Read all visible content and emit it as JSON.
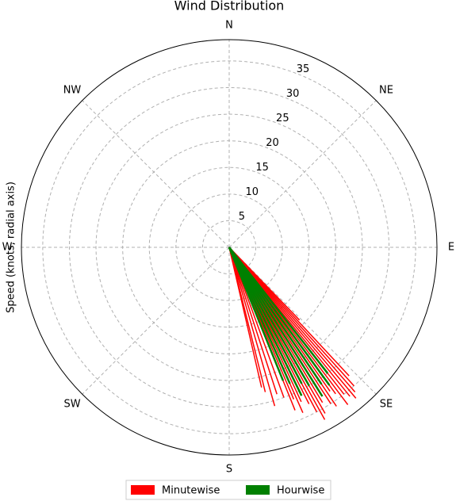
{
  "chart_data": {
    "type": "polar-line",
    "title": "Wind Distribution",
    "y_label": "Speed (knots, radial axis)",
    "direction": "clockwise",
    "zero_location": "N",
    "xticks": [
      {
        "value": 0,
        "label": "N"
      },
      {
        "value": 45,
        "label": "NE"
      },
      {
        "value": 90,
        "label": "E"
      },
      {
        "value": 135,
        "label": "SE"
      },
      {
        "value": 180,
        "label": "S"
      },
      {
        "value": 225,
        "label": "SW"
      },
      {
        "value": 270,
        "label": "W"
      },
      {
        "value": 315,
        "label": "NW"
      }
    ],
    "ylim": [
      0,
      39
    ],
    "yticks": [
      5,
      10,
      15,
      20,
      25,
      30,
      35
    ],
    "ytick_angle": 22.5,
    "grid": true,
    "legend": "bottom",
    "series": [
      {
        "name": "Minutewise",
        "color": "#ff0000",
        "x": [
          136,
          137,
          138,
          139,
          140,
          141,
          142,
          143,
          144,
          145,
          146,
          147,
          148,
          149,
          150,
          151,
          152,
          153,
          154,
          155,
          156,
          157,
          158,
          160,
          162,
          164,
          166,
          167
        ],
        "values": [
          19,
          33,
          35,
          36,
          37,
          36,
          35,
          37,
          34,
          33,
          36,
          35,
          32,
          34,
          36,
          37,
          35,
          33,
          30,
          32,
          34,
          31,
          33,
          30,
          29,
          31,
          28,
          27
        ]
      },
      {
        "name": "Hourwise",
        "color": "#008000",
        "x": [
          142,
          144,
          146,
          148,
          150,
          152,
          154,
          156,
          158
        ],
        "values": [
          30,
          32,
          31,
          33,
          30,
          29,
          31,
          28,
          27
        ]
      }
    ]
  }
}
